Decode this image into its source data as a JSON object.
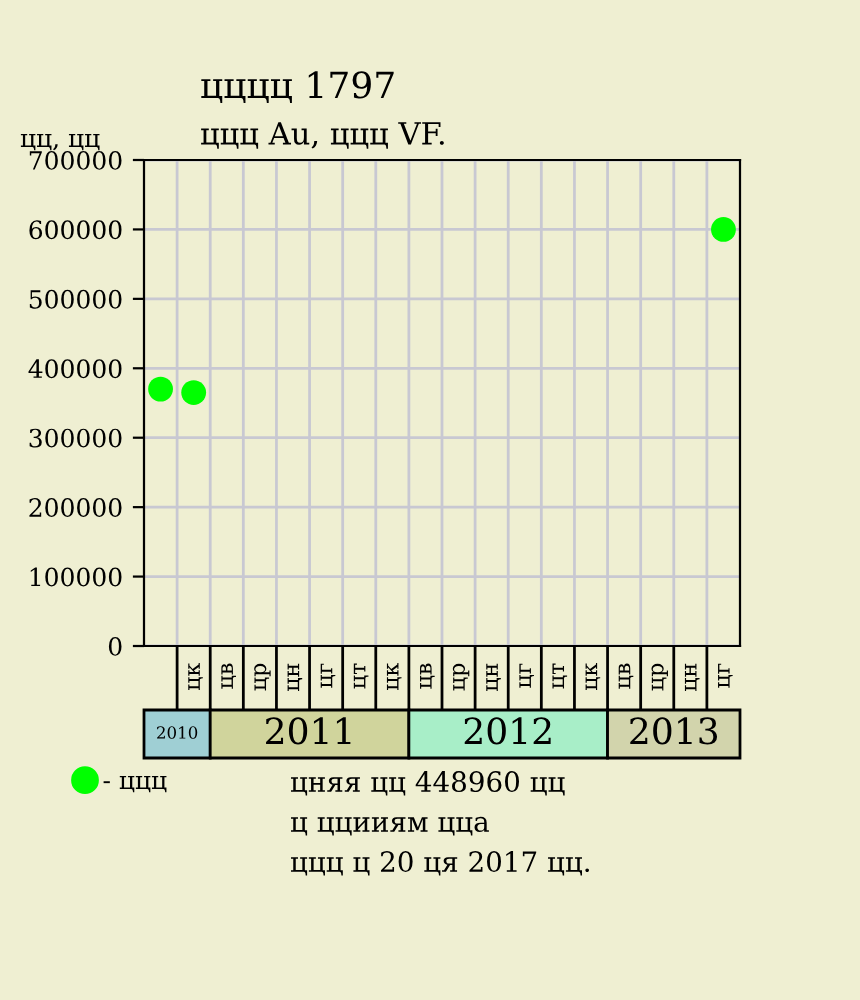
{
  "chart_data": {
    "type": "scatter",
    "title": "цццц 1797",
    "subtitle": "ццц Au, ццц VF.",
    "ylabel": "цц, цц",
    "categories": [
      null,
      "цк",
      "цв",
      "цр",
      "цн",
      "цг",
      "цт",
      "цк",
      "цв",
      "цр",
      "цн",
      "цг",
      "цт",
      "цк",
      "цв",
      "цр",
      "цн",
      "цг"
    ],
    "series": [
      {
        "name": "- ццц",
        "color": "#00ff00",
        "values": [
          370000,
          365000,
          null,
          null,
          null,
          null,
          null,
          null,
          null,
          null,
          null,
          null,
          null,
          null,
          null,
          null,
          null,
          600000
        ]
      }
    ],
    "marker": "circle",
    "ylim": [
      0,
      700000
    ],
    "yticks": [
      0,
      100000,
      200000,
      300000,
      400000,
      500000,
      600000,
      700000
    ],
    "grid": true,
    "legend": "bottom left",
    "annotations": [
      "2010",
      "2011",
      "2012",
      "2013",
      "цняя цц 448960 цц",
      "ц ццииям цца",
      "ццц ц 20 ця 2017 цц."
    ]
  }
}
